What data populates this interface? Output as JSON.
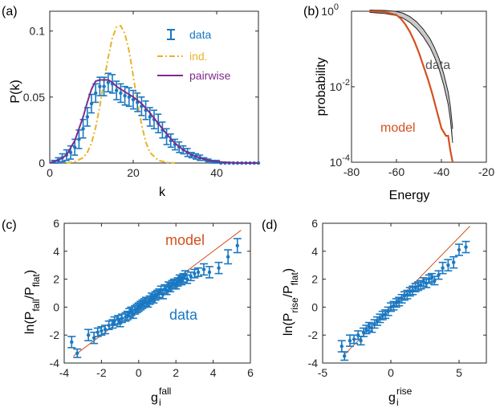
{
  "chart_data": [
    {
      "panel_label": "(a)",
      "type": "line",
      "xlabel": "k",
      "ylabel": "P(k)",
      "xlim": [
        0,
        50
      ],
      "ylim": [
        0,
        0.115
      ],
      "xticks": [
        0,
        20,
        40
      ],
      "yticks": [
        0,
        0.05,
        0.1
      ],
      "ytick_labels": [
        "0",
        "0.05",
        "0.1"
      ],
      "legend_position": "top-right",
      "colors": {
        "data": "#1a78c2",
        "ind": "#e6b428",
        "pairwise": "#7b2d8e"
      },
      "series": [
        {
          "name": "data",
          "kind": "errorbar",
          "x": [
            1,
            2,
            3,
            4,
            5,
            6,
            7,
            8,
            9,
            10,
            11,
            12,
            13,
            14,
            15,
            16,
            17,
            18,
            19,
            20,
            21,
            22,
            23,
            24,
            25,
            26,
            27,
            28,
            29,
            30,
            31,
            32,
            33,
            34,
            35,
            36,
            37,
            38,
            39,
            40,
            41,
            42,
            43,
            44,
            45,
            46,
            47,
            48,
            49,
            50
          ],
          "y": [
            0.001,
            0.002,
            0.004,
            0.006,
            0.008,
            0.012,
            0.018,
            0.026,
            0.035,
            0.045,
            0.053,
            0.058,
            0.058,
            0.061,
            0.06,
            0.055,
            0.053,
            0.051,
            0.05,
            0.048,
            0.046,
            0.043,
            0.04,
            0.035,
            0.033,
            0.03,
            0.025,
            0.02,
            0.017,
            0.014,
            0.012,
            0.01,
            0.008,
            0.006,
            0.005,
            0.004,
            0.003,
            0.002,
            0.001,
            0.001,
            0,
            0,
            0,
            0,
            0,
            0,
            0,
            0,
            0,
            0
          ],
          "err": [
            0.001,
            0.002,
            0.003,
            0.004,
            0.005,
            0.006,
            0.007,
            0.007,
            0.007,
            0.007,
            0.007,
            0.007,
            0.007,
            0.007,
            0.007,
            0.007,
            0.007,
            0.007,
            0.007,
            0.007,
            0.007,
            0.007,
            0.007,
            0.007,
            0.007,
            0.007,
            0.006,
            0.006,
            0.005,
            0.004,
            0.004,
            0.003,
            0.003,
            0.002,
            0.002,
            0.002,
            0.001,
            0.001,
            0.001,
            0.001,
            0,
            0,
            0,
            0,
            0,
            0,
            0,
            0,
            0,
            0
          ]
        },
        {
          "name": "ind.",
          "kind": "line",
          "x": [
            4,
            6,
            8,
            9,
            10,
            11,
            12,
            13,
            14,
            15,
            16,
            17,
            18,
            19,
            20,
            21,
            22,
            23,
            24,
            26,
            28,
            30
          ],
          "y": [
            0,
            0.001,
            0.004,
            0.008,
            0.015,
            0.027,
            0.043,
            0.062,
            0.08,
            0.095,
            0.103,
            0.104,
            0.098,
            0.085,
            0.066,
            0.046,
            0.029,
            0.016,
            0.008,
            0.002,
            0.0005,
            0
          ]
        },
        {
          "name": "pairwise",
          "kind": "line",
          "x": [
            0,
            2,
            4,
            6,
            8,
            9,
            10,
            11,
            12,
            13,
            14,
            15,
            16,
            17,
            18,
            20,
            22,
            24,
            26,
            28,
            30,
            32,
            34,
            36,
            38,
            40,
            45,
            50
          ],
          "y": [
            0,
            0.002,
            0.006,
            0.017,
            0.035,
            0.046,
            0.056,
            0.062,
            0.063,
            0.063,
            0.063,
            0.061,
            0.058,
            0.056,
            0.054,
            0.05,
            0.045,
            0.038,
            0.03,
            0.022,
            0.015,
            0.01,
            0.006,
            0.004,
            0.002,
            0.001,
            0,
            0
          ]
        }
      ]
    },
    {
      "panel_label": "(b)",
      "type": "line",
      "xlabel": "Energy",
      "ylabel": "probability",
      "xlim": [
        -80,
        -20
      ],
      "ylim_log10": [
        -4,
        0
      ],
      "yscale": "log",
      "xticks": [
        -80,
        -60,
        -40,
        -20
      ],
      "yticks": [
        {
          "base": "10",
          "exp": "0"
        },
        {
          "base": "10",
          "exp": "-2"
        },
        {
          "base": "10",
          "exp": "-4"
        }
      ],
      "colors": {
        "data": "#555555",
        "model": "#d4501e"
      },
      "annotations": [
        {
          "text": "data",
          "color": "#555555"
        },
        {
          "text": "model",
          "color": "#d4501e"
        }
      ],
      "series": [
        {
          "name": "data",
          "x": [
            -72,
            -65,
            -60,
            -57,
            -54,
            -51,
            -48,
            -45,
            -43,
            -41,
            -39,
            -37,
            -36,
            -35
          ],
          "log10_y": [
            0,
            -0.02,
            -0.06,
            -0.12,
            -0.22,
            -0.37,
            -0.58,
            -0.85,
            -1.1,
            -1.4,
            -1.8,
            -2.3,
            -2.7,
            -3.3
          ]
        },
        {
          "name": "model",
          "x": [
            -72,
            -65,
            -60,
            -58,
            -56,
            -54,
            -52,
            -50,
            -48,
            -46,
            -44,
            -42,
            -40,
            -38,
            -37,
            -36,
            -35
          ],
          "log10_y": [
            0,
            -0.02,
            -0.1,
            -0.2,
            -0.35,
            -0.55,
            -0.8,
            -1.1,
            -1.45,
            -1.8,
            -2.2,
            -2.65,
            -3.1,
            -3.3,
            -3.3,
            -3.7,
            -4.0
          ]
        }
      ]
    },
    {
      "panel_label": "(c)",
      "type": "scatter",
      "xlabel": {
        "base": "g",
        "sup": "fall",
        "sub": "i"
      },
      "ylabel": {
        "prefix": "ln(P",
        "sub1": "fall",
        "mid": "/P",
        "sub2": "flat",
        "suffix": ")"
      },
      "xlim": [
        -4,
        6
      ],
      "ylim": [
        -4,
        6
      ],
      "xticks": [
        -4,
        -2,
        0,
        2,
        4,
        6
      ],
      "yticks": [
        -4,
        -2,
        0,
        2,
        4,
        6
      ],
      "colors": {
        "data": "#1a78c2",
        "model": "#d4501e"
      },
      "annotations": [
        {
          "text": "model",
          "color": "#d4501e"
        },
        {
          "text": "data",
          "color": "#1a78c2"
        }
      ],
      "model_line": {
        "x": [
          -3.5,
          5.5
        ],
        "y": [
          -3.5,
          5.5
        ]
      },
      "series": [
        {
          "name": "data",
          "x": [
            -3.6,
            -3.3,
            -2.7,
            -2.4,
            -2.2,
            -2.0,
            -1.8,
            -1.6,
            -1.4,
            -1.3,
            -1.1,
            -1.0,
            -0.9,
            -0.7,
            -0.6,
            -0.5,
            -0.4,
            -0.3,
            -0.2,
            -0.1,
            0,
            0.1,
            0.2,
            0.3,
            0.4,
            0.5,
            0.6,
            0.7,
            0.8,
            0.9,
            1.0,
            1.1,
            1.2,
            1.3,
            1.4,
            1.5,
            1.6,
            1.7,
            1.8,
            1.9,
            2.0,
            2.1,
            2.2,
            2.3,
            2.4,
            2.5,
            2.6,
            2.8,
            3.0,
            3.2,
            3.5,
            3.8,
            4.3,
            4.8,
            5.3
          ],
          "y": [
            -2.5,
            -3.3,
            -2.0,
            -2.2,
            -1.8,
            -1.7,
            -1.6,
            -1.3,
            -1.2,
            -1.0,
            -0.9,
            -1.1,
            -0.8,
            -0.7,
            -0.6,
            -0.4,
            -0.3,
            -0.5,
            -0.2,
            -0.1,
            0,
            0.1,
            0.2,
            0.3,
            0.4,
            0.3,
            0.5,
            0.7,
            0.6,
            0.8,
            0.9,
            1.0,
            1.2,
            0.9,
            1.3,
            1.2,
            1.5,
            1.4,
            1.6,
            1.7,
            1.6,
            1.8,
            2.0,
            1.9,
            2.1,
            2.3,
            2.0,
            2.2,
            2.4,
            2.5,
            2.7,
            2.5,
            2.8,
            3.6,
            4.4
          ],
          "err": [
            0.4,
            0.3,
            0.4,
            0.4,
            0.3,
            0.3,
            0.3,
            0.3,
            0.3,
            0.3,
            0.3,
            0.3,
            0.3,
            0.3,
            0.3,
            0.3,
            0.3,
            0.3,
            0.3,
            0.3,
            0.3,
            0.3,
            0.3,
            0.3,
            0.3,
            0.3,
            0.3,
            0.3,
            0.3,
            0.3,
            0.3,
            0.3,
            0.3,
            0.3,
            0.3,
            0.3,
            0.3,
            0.3,
            0.3,
            0.3,
            0.3,
            0.3,
            0.3,
            0.3,
            0.3,
            0.3,
            0.3,
            0.3,
            0.3,
            0.3,
            0.4,
            0.4,
            0.4,
            0.5,
            0.5
          ]
        }
      ]
    },
    {
      "panel_label": "(d)",
      "type": "scatter",
      "xlabel": {
        "base": "g",
        "sup": "rise",
        "sub": "i"
      },
      "ylabel": {
        "prefix": "ln(P",
        "sub1": "rise",
        "mid": "/P",
        "sub2": "flat",
        "suffix": ")"
      },
      "xlim": [
        -5,
        7
      ],
      "ylim": [
        -4,
        6
      ],
      "xticks": [
        -5,
        0,
        5
      ],
      "yticks": [
        -4,
        -2,
        0,
        2,
        4,
        6
      ],
      "colors": {
        "data": "#1a78c2",
        "model": "#d4501e"
      },
      "model_line": {
        "x": [
          -3.5,
          5.8
        ],
        "y": [
          -3.5,
          5.8
        ]
      },
      "series": [
        {
          "name": "data",
          "x": [
            -3.6,
            -3.4,
            -3.0,
            -2.7,
            -2.4,
            -2.2,
            -2.0,
            -1.8,
            -1.6,
            -1.4,
            -1.2,
            -1.0,
            -0.8,
            -0.6,
            -0.4,
            -0.2,
            0,
            0.2,
            0.4,
            0.6,
            0.8,
            1.0,
            1.2,
            1.4,
            1.6,
            1.8,
            2.0,
            2.2,
            2.4,
            2.6,
            2.8,
            3.0,
            3.2,
            3.5,
            3.8,
            4.2,
            4.6,
            5.0,
            5.5
          ],
          "y": [
            -2.8,
            -3.5,
            -2.4,
            -2.3,
            -2.0,
            -2.4,
            -1.8,
            -1.6,
            -1.4,
            -1.5,
            -1.2,
            -1.0,
            -0.8,
            -0.6,
            -0.5,
            -0.3,
            0,
            0.1,
            0.3,
            0.4,
            0.6,
            0.8,
            0.9,
            1.1,
            1.2,
            1.4,
            1.5,
            1.6,
            1.8,
            1.7,
            2.0,
            2.1,
            1.9,
            2.3,
            2.8,
            3.0,
            3.2,
            4.1,
            4.3
          ],
          "err": [
            0.4,
            0.3,
            0.4,
            0.3,
            0.3,
            0.3,
            0.3,
            0.3,
            0.3,
            0.3,
            0.3,
            0.3,
            0.3,
            0.3,
            0.3,
            0.3,
            0.3,
            0.3,
            0.3,
            0.3,
            0.3,
            0.3,
            0.3,
            0.3,
            0.3,
            0.3,
            0.3,
            0.3,
            0.3,
            0.3,
            0.3,
            0.3,
            0.3,
            0.3,
            0.4,
            0.4,
            0.4,
            0.4,
            0.4
          ]
        }
      ]
    }
  ]
}
